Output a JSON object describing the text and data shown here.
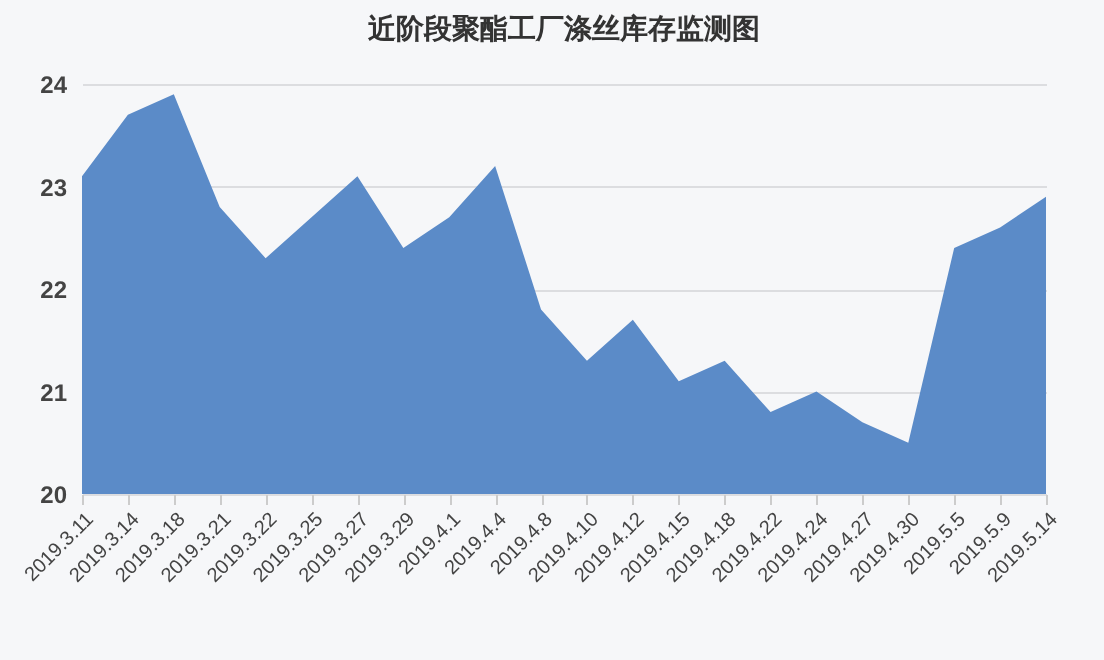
{
  "chart_data": {
    "type": "area",
    "title": "近阶段聚酯工厂涤丝库存监测图",
    "categories": [
      "2019.3.11",
      "2019.3.14",
      "2019.3.18",
      "2019.3.21",
      "2019.3.22",
      "2019.3.25",
      "2019.3.27",
      "2019.3.29",
      "2019.4.1",
      "2019.4.4",
      "2019.4.8",
      "2019.4.10",
      "2019.4.12",
      "2019.4.15",
      "2019.4.18",
      "2019.4.22",
      "2019.4.24",
      "2019.4.27",
      "2019.4.30",
      "2019.5.5",
      "2019.5.9",
      "2019.5.14"
    ],
    "series": [
      {
        "color": "#5b8bc8",
        "values": [
          23.1,
          23.7,
          23.9,
          22.8,
          22.3,
          22.7,
          23.1,
          22.4,
          22.7,
          23.2,
          21.8,
          21.3,
          21.7,
          21.1,
          21.3,
          20.8,
          21.0,
          20.7,
          20.5,
          22.4,
          22.6,
          22.9
        ]
      }
    ],
    "ylim": [
      20,
      24
    ],
    "yticks": [
      20,
      21,
      22,
      23,
      24
    ],
    "grid": "y"
  }
}
